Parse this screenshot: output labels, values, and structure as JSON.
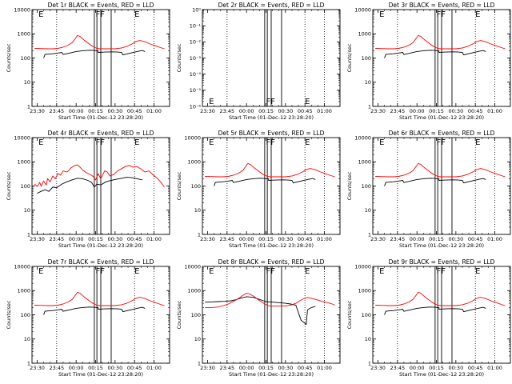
{
  "figure": {
    "x_tick_labels": [
      "23:30",
      "23:45",
      "00:00",
      "00:15",
      "00:30",
      "00:45",
      "01:00"
    ],
    "xlabel": "Start Time (01-Dec-12 23:28:20)",
    "ylabel": "Counts/sec",
    "colors": {
      "events": "#000000",
      "lld": "#ff0000",
      "axes": "#000000",
      "background": "#ffffff"
    }
  },
  "chart_data": [
    {
      "type": "line",
      "title": "Det 1r  BLACK = Events, RED = LLD",
      "y_scale": "log",
      "ylim": [
        1,
        10000
      ],
      "y_tick_labels": [
        "1",
        "10",
        "100",
        "1000",
        "10000"
      ],
      "flag_labels": [
        "E",
        "FF",
        "E"
      ],
      "lld_profile": "standard",
      "events_profile": "standard"
    },
    {
      "type": "line",
      "title": "Det 2r  BLACK = Events, RED = LLD",
      "y_scale": "log",
      "ylim": [
        1e-06,
        1
      ],
      "y_tick_labels": [
        "10⁰",
        "10⁻¹",
        "10⁻²",
        "10⁻³",
        "10⁻⁴",
        "10⁻⁵",
        "10⁻⁶"
      ],
      "flag_labels": [
        "E",
        "FF",
        "E"
      ],
      "lld_profile": "none",
      "events_profile": "none"
    },
    {
      "type": "line",
      "title": "Det 3r  BLACK = Events, RED = LLD",
      "y_scale": "log",
      "ylim": [
        1,
        10000
      ],
      "y_tick_labels": [
        "1",
        "10",
        "100",
        "1000",
        "10000"
      ],
      "flag_labels": [
        "E",
        "FF",
        "E"
      ],
      "lld_profile": "standard",
      "events_profile": "standard"
    },
    {
      "type": "line",
      "title": "Det 4r  BLACK = Events, RED = LLD",
      "y_scale": "log",
      "ylim": [
        1,
        10000
      ],
      "y_tick_labels": [
        "1",
        "10",
        "100",
        "1000",
        "10000"
      ],
      "flag_labels": [
        "E",
        "FF",
        "E"
      ],
      "lld_profile": "noisy",
      "events_profile": "noisy"
    },
    {
      "type": "line",
      "title": "Det 5r  BLACK = Events, RED = LLD",
      "y_scale": "log",
      "ylim": [
        1,
        10000
      ],
      "y_tick_labels": [
        "1",
        "10",
        "100",
        "1000",
        "10000"
      ],
      "flag_labels": [
        "E",
        "FF",
        "E"
      ],
      "lld_profile": "standard",
      "events_profile": "standard"
    },
    {
      "type": "line",
      "title": "Det 6r  BLACK = Events, RED = LLD",
      "y_scale": "log",
      "ylim": [
        1,
        10000
      ],
      "y_tick_labels": [
        "1",
        "10",
        "100",
        "1000",
        "10000"
      ],
      "flag_labels": [
        "E",
        "FF",
        "E"
      ],
      "lld_profile": "standard",
      "events_profile": "standard"
    },
    {
      "type": "line",
      "title": "Det 7r  BLACK = Events, RED = LLD",
      "y_scale": "log",
      "ylim": [
        1,
        10000
      ],
      "y_tick_labels": [
        "1",
        "10",
        "100",
        "1000",
        "10000"
      ],
      "flag_labels": [
        "E",
        "FF",
        "E"
      ],
      "lld_profile": "standard",
      "events_profile": "standard"
    },
    {
      "type": "line",
      "title": "Det 8r  BLACK = Events, RED = LLD",
      "y_scale": "log",
      "ylim": [
        1,
        10000
      ],
      "y_tick_labels": [
        "1",
        "10",
        "100",
        "1000",
        "10000"
      ],
      "flag_labels": [
        "E",
        "FF",
        "E"
      ],
      "lld_profile": "high",
      "events_profile": "high"
    },
    {
      "type": "line",
      "title": "Det 9r  BLACK = Events, RED = LLD",
      "y_scale": "log",
      "ylim": [
        1,
        10000
      ],
      "y_tick_labels": [
        "1",
        "10",
        "100",
        "1000",
        "10000"
      ],
      "flag_labels": [
        "E",
        "FF",
        "E"
      ],
      "lld_profile": "standard",
      "events_profile": "standard"
    }
  ],
  "series_shapes": {
    "standard": {
      "lld": {
        "x": [
          "23:28",
          "23:33",
          "23:38",
          "23:42",
          "23:46",
          "23:50",
          "23:54",
          "23:57",
          "23:59",
          "00:01",
          "00:03",
          "00:06",
          "00:09",
          "00:12",
          "00:14",
          "00:16",
          "00:18",
          "00:22",
          "00:26",
          "00:30",
          "00:35",
          "00:39",
          "00:43",
          "00:46",
          "00:49",
          "00:53",
          "00:57",
          "01:01",
          "01:05",
          "01:08"
        ],
        "y": [
          250,
          245,
          240,
          240,
          250,
          280,
          340,
          430,
          600,
          850,
          780,
          560,
          420,
          320,
          280,
          250,
          240,
          240,
          240,
          240,
          260,
          300,
          380,
          480,
          530,
          470,
          380,
          320,
          270,
          240
        ]
      },
      "events": {
        "x": [
          "23:35",
          "23:36",
          "23:39",
          "23:42",
          "23:46",
          "23:49",
          "23:50",
          "23:55",
          "00:00",
          "00:05",
          "00:10",
          "00:14",
          "00:17",
          "00:17",
          "00:22",
          "00:28",
          "00:32",
          "00:35",
          "00:36",
          "00:42",
          "00:47",
          "00:51",
          "00:53"
        ],
        "y": [
          100,
          140,
          145,
          150,
          160,
          170,
          140,
          160,
          185,
          200,
          210,
          205,
          195,
          170,
          175,
          180,
          175,
          170,
          135,
          160,
          185,
          205,
          185
        ]
      }
    },
    "noisy": {
      "lld": {
        "x": [
          "23:28",
          "23:30",
          "23:32",
          "23:33",
          "23:35",
          "23:37",
          "23:38",
          "23:40",
          "23:42",
          "23:44",
          "23:46",
          "23:48",
          "23:50",
          "23:53",
          "23:56",
          "23:59",
          "00:01",
          "00:03",
          "00:05",
          "00:08",
          "00:11",
          "00:13",
          "00:15",
          "00:17",
          "00:19",
          "00:22",
          "00:24",
          "00:26",
          "00:29",
          "00:32",
          "00:35",
          "00:38",
          "00:41",
          "00:44",
          "00:47",
          "00:50",
          "00:53",
          "00:56",
          "00:59",
          "01:02",
          "01:05",
          "01:08"
        ],
        "y": [
          120,
          95,
          140,
          100,
          160,
          110,
          200,
          150,
          260,
          200,
          330,
          280,
          420,
          380,
          560,
          700,
          750,
          600,
          460,
          350,
          300,
          250,
          180,
          320,
          200,
          420,
          380,
          260,
          300,
          420,
          520,
          640,
          700,
          600,
          640,
          500,
          380,
          420,
          300,
          220,
          150,
          90
        ]
      },
      "events": {
        "x": [
          "23:30",
          "23:33",
          "23:36",
          "23:39",
          "23:42",
          "23:45",
          "23:49",
          "23:53",
          "23:57",
          "00:01",
          "00:05",
          "00:09",
          "00:12",
          "00:14",
          "00:16",
          "00:19",
          "00:23",
          "00:27",
          "00:31",
          "00:35",
          "00:39",
          "00:43",
          "00:47",
          "00:51"
        ],
        "y": [
          50,
          60,
          70,
          60,
          90,
          85,
          120,
          150,
          180,
          210,
          200,
          170,
          140,
          90,
          120,
          110,
          150,
          170,
          190,
          210,
          230,
          220,
          200,
          180
        ]
      }
    },
    "high": {
      "lld": {
        "x": [
          "23:28",
          "23:33",
          "23:38",
          "23:42",
          "23:46",
          "23:50",
          "23:54",
          "23:57",
          "00:00",
          "00:03",
          "00:06",
          "00:09",
          "00:12",
          "00:14",
          "00:16",
          "00:18",
          "00:22",
          "00:26",
          "00:30",
          "00:35",
          "00:38",
          "00:41",
          "00:44",
          "00:47",
          "00:50",
          "00:54",
          "00:58",
          "01:02",
          "01:06",
          "01:08"
        ],
        "y": [
          200,
          200,
          210,
          240,
          280,
          360,
          480,
          620,
          780,
          700,
          560,
          420,
          330,
          280,
          250,
          230,
          230,
          230,
          230,
          260,
          300,
          380,
          460,
          520,
          480,
          420,
          360,
          320,
          280,
          250
        ]
      },
      "events": {
        "x": [
          "23:28",
          "23:33",
          "23:38",
          "23:43",
          "23:48",
          "23:52",
          "23:56",
          "00:00",
          "00:05",
          "00:10",
          "00:13",
          "00:15",
          "00:18",
          "00:24",
          "00:30",
          "00:34",
          "00:38",
          "00:42",
          "00:46",
          "00:47",
          "00:50",
          "00:53"
        ],
        "y": [
          330,
          340,
          350,
          360,
          380,
          420,
          500,
          560,
          530,
          430,
          380,
          350,
          340,
          320,
          300,
          280,
          250,
          60,
          40,
          160,
          200,
          220
        ]
      }
    },
    "none": {
      "lld": {
        "x": [],
        "y": []
      },
      "events": {
        "x": [],
        "y": []
      }
    }
  }
}
